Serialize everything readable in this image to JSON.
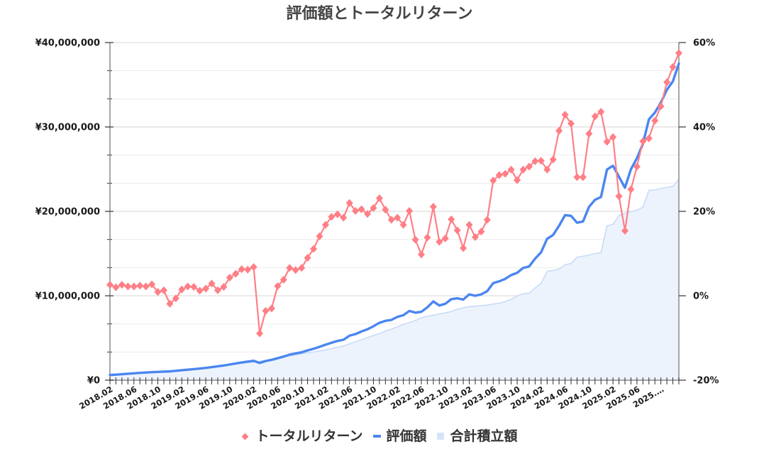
{
  "title": "評価額とトータルリターン",
  "legend": [
    {
      "label": "トータルリターン",
      "icon": "diamond-marker",
      "color": "#ff7f87"
    },
    {
      "label": "評価額",
      "icon": "line-dash",
      "color": "#4a86f0"
    },
    {
      "label": "合計積立額",
      "icon": "filled-square",
      "color": "#d6e4fb"
    }
  ],
  "colors": {
    "total_return": "#ff7f87",
    "valuation": "#4a86f0",
    "invested_fill": "#edf3fd",
    "invested_stroke": "#c9dbf8",
    "grid_major": "#d6d6d6",
    "grid_minor": "#ececec",
    "axis": "#8a8a8a",
    "tick": "#333333"
  },
  "chart_data": {
    "type": "line",
    "title": "評価額とトータルリターン",
    "xlabel": "",
    "ylabel_left": "",
    "ylabel_right": "",
    "ylim_left": [
      0,
      40000000
    ],
    "ylim_right": [
      -20,
      60
    ],
    "y_left_tick_labels": [
      "¥0",
      "¥10,000,000",
      "¥20,000,000",
      "¥30,000,000",
      "¥40,000,000"
    ],
    "y_right_tick_labels": [
      "-20%",
      "0%",
      "20%",
      "40%",
      "60%"
    ],
    "x_tick_every": 4,
    "x_tick_labels": [
      "2018.02",
      "2018.06",
      "2018.10",
      "2019.02",
      "2019.06",
      "2019.10",
      "2020.02",
      "2020.06",
      "2020.10",
      "2021.02",
      "2021.06",
      "2021.10",
      "2022.02",
      "2022.06",
      "2022.10",
      "2023.02",
      "2023.06",
      "2023.10",
      "2024.02",
      "2024.06",
      "2024.10",
      "2025.02",
      "2025.06",
      "2025.…"
    ],
    "grid": true,
    "legend_position": "bottom",
    "x": [
      "2018.02",
      "2018.03",
      "2018.04",
      "2018.05",
      "2018.06",
      "2018.07",
      "2018.08",
      "2018.09",
      "2018.10",
      "2018.11",
      "2018.12",
      "2019.01",
      "2019.02",
      "2019.03",
      "2019.04",
      "2019.05",
      "2019.06",
      "2019.07",
      "2019.08",
      "2019.09",
      "2019.10",
      "2019.11",
      "2019.12",
      "2020.01",
      "2020.02",
      "2020.03",
      "2020.04",
      "2020.05",
      "2020.06",
      "2020.07",
      "2020.08",
      "2020.09",
      "2020.10",
      "2020.11",
      "2020.12",
      "2021.01",
      "2021.02",
      "2021.03",
      "2021.04",
      "2021.05",
      "2021.06",
      "2021.07",
      "2021.08",
      "2021.09",
      "2021.10",
      "2021.11",
      "2021.12",
      "2022.01",
      "2022.02",
      "2022.03",
      "2022.04",
      "2022.05",
      "2022.06",
      "2022.07",
      "2022.08",
      "2022.09",
      "2022.10",
      "2022.11",
      "2022.12",
      "2023.01",
      "2023.02",
      "2023.03",
      "2023.04",
      "2023.05",
      "2023.06",
      "2023.07",
      "2023.08",
      "2023.09",
      "2023.10",
      "2023.11",
      "2023.12",
      "2024.01",
      "2024.02",
      "2024.03",
      "2024.04",
      "2024.05",
      "2024.06",
      "2024.07",
      "2024.08",
      "2024.09",
      "2024.10",
      "2024.11",
      "2024.12",
      "2025.01",
      "2025.02",
      "2025.03",
      "2025.04",
      "2025.05",
      "2025.06",
      "2025.07",
      "2025.08",
      "2025.09",
      "2025.10",
      "2025.11",
      "2025.12",
      "2026.01"
    ],
    "series": [
      {
        "name": "トータルリターン",
        "type": "line",
        "axis": "right",
        "unit": "%",
        "marker": "diamond",
        "values": [
          2.6,
          2.0,
          2.6,
          2.2,
          2.2,
          2.4,
          2.2,
          2.7,
          0.9,
          1.3,
          -1.9,
          -0.6,
          1.5,
          2.2,
          2.1,
          1.2,
          1.7,
          2.9,
          1.3,
          2.1,
          4.3,
          5.2,
          6.3,
          6.2,
          6.8,
          -8.9,
          -3.6,
          -3.0,
          2.3,
          3.8,
          6.6,
          6.1,
          6.6,
          9.0,
          11.1,
          14.1,
          16.8,
          18.7,
          19.3,
          18.5,
          22.0,
          20.1,
          20.5,
          19.4,
          20.8,
          23.1,
          20.4,
          18.0,
          18.5,
          16.8,
          20.1,
          13.3,
          9.8,
          13.8,
          21.1,
          12.8,
          13.6,
          18.1,
          15.5,
          11.3,
          16.8,
          13.9,
          15.2,
          18.0,
          27.3,
          28.6,
          28.9,
          29.9,
          27.4,
          29.9,
          30.6,
          31.9,
          32.0,
          29.9,
          32.3,
          39.1,
          42.9,
          40.8,
          28.1,
          28.1,
          38.4,
          42.5,
          43.6,
          36.5,
          37.6,
          23.6,
          15.4,
          25.2,
          30.6,
          36.6,
          37.3,
          41.5,
          44.9,
          50.6,
          54.2,
          57.5
        ]
      },
      {
        "name": "評価額",
        "type": "line",
        "axis": "left",
        "unit": "¥",
        "values": [
          620000,
          660000,
          710000,
          760000,
          810000,
          870000,
          910000,
          950000,
          980000,
          1010000,
          1040000,
          1110000,
          1180000,
          1250000,
          1310000,
          1380000,
          1460000,
          1550000,
          1640000,
          1740000,
          1860000,
          1980000,
          2100000,
          2200000,
          2300000,
          2040000,
          2270000,
          2410000,
          2600000,
          2800000,
          3030000,
          3170000,
          3300000,
          3530000,
          3720000,
          3950000,
          4200000,
          4430000,
          4650000,
          4790000,
          5270000,
          5460000,
          5770000,
          6030000,
          6390000,
          6800000,
          7030000,
          7140000,
          7500000,
          7700000,
          8200000,
          8000000,
          8100000,
          8630000,
          9330000,
          8850000,
          9050000,
          9600000,
          9700000,
          9550000,
          10170000,
          10000000,
          10170000,
          10550000,
          11500000,
          11710000,
          12000000,
          12450000,
          12720000,
          13300000,
          13470000,
          14400000,
          15150000,
          16750000,
          17200000,
          18300000,
          19550000,
          19470000,
          18660000,
          18800000,
          20530000,
          21370000,
          21700000,
          24950000,
          25400000,
          24100000,
          22800000,
          25000000,
          26300000,
          28000000,
          30900000,
          31700000,
          32900000,
          34400000,
          35400000,
          37500000
        ]
      },
      {
        "name": "合計積立額",
        "type": "area",
        "axis": "left",
        "unit": "¥",
        "values": [
          600000,
          650000,
          690000,
          740000,
          790000,
          850000,
          890000,
          930000,
          970000,
          1000000,
          1060000,
          1120000,
          1160000,
          1220000,
          1280000,
          1360000,
          1440000,
          1510000,
          1620000,
          1700000,
          1780000,
          1880000,
          1980000,
          2070000,
          2150000,
          2240000,
          2350000,
          2480000,
          2540000,
          2700000,
          2840000,
          2990000,
          3100000,
          3240000,
          3350000,
          3460000,
          3600000,
          3730000,
          3900000,
          4040000,
          4320000,
          4550000,
          4790000,
          5050000,
          5290000,
          5520000,
          5840000,
          6050000,
          6330000,
          6590000,
          6830000,
          7060000,
          7380000,
          7580000,
          7700000,
          7850000,
          7970000,
          8130000,
          8400000,
          8580000,
          8710000,
          8780000,
          8830000,
          8900000,
          9030000,
          9110000,
          9310000,
          9580000,
          9980000,
          10240000,
          10310000,
          10920000,
          11480000,
          12890000,
          13000000,
          13160000,
          13680000,
          13830000,
          14570000,
          14680000,
          14830000,
          15000000,
          15110000,
          18280000,
          18460000,
          19500000,
          19760000,
          19970000,
          20140000,
          20500000,
          22500000,
          22550000,
          22700000,
          22840000,
          22960000,
          23810000
        ]
      }
    ]
  }
}
